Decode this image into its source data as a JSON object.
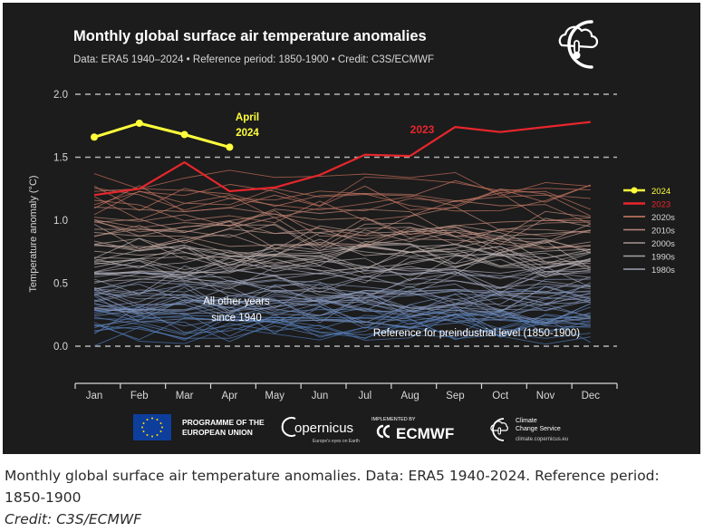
{
  "figure": {
    "title": "Monthly global surface air temperature anomalies",
    "subtitle": "Data: ERA5 1940–2024 • Reference period: 1850-1900 • Credit: C3S/ECMWF"
  },
  "chart_data": {
    "type": "line",
    "ylabel": "Temperature anomaly (°C)",
    "xlabel": "",
    "ylim": [
      0.0,
      2.0
    ],
    "yticks": [
      "0.0",
      "0.5",
      "1.0",
      "1.5",
      "2.0"
    ],
    "grid": "dashed horizontal at 0.0, 1.5, 2.0",
    "categories": [
      "Jan",
      "Feb",
      "Mar",
      "Apr",
      "May",
      "Jun",
      "Jul",
      "Aug",
      "Sep",
      "Oct",
      "Nov",
      "Dec"
    ],
    "series": [
      {
        "name": "2024",
        "color": "#ffff3c",
        "values": [
          1.66,
          1.77,
          1.68,
          1.58,
          null,
          null,
          null,
          null,
          null,
          null,
          null,
          null
        ]
      },
      {
        "name": "2023",
        "color": "#e8262c",
        "values": [
          1.2,
          1.25,
          1.46,
          1.23,
          1.26,
          1.36,
          1.52,
          1.51,
          1.74,
          1.7,
          1.74,
          1.78
        ]
      }
    ],
    "legend": [
      {
        "label": "2024",
        "color": "#ffff3c"
      },
      {
        "label": "2023",
        "color": "#e8262c"
      },
      {
        "label": "2020s",
        "color": "#cf7f67"
      },
      {
        "label": "2010s",
        "color": "#b9877d"
      },
      {
        "label": "2000s",
        "color": "#a89590"
      },
      {
        "label": "1990s",
        "color": "#a3a3a8"
      },
      {
        "label": "1980s",
        "color": "#9ea2b5"
      }
    ],
    "legend_position": "right",
    "annotations": {
      "label_2024_line1": "April",
      "label_2024_line2": "2024",
      "label_2023": "2023",
      "other_years_line1": "All other years",
      "other_years_line2": "since 1940",
      "reference": "Reference for preindustrial level (1850-1900)"
    }
  },
  "logos": {
    "eu_line1": "PROGRAMME OF THE",
    "eu_line2": "EUROPEAN UNION",
    "copernicus": "opernicus",
    "copernicus_tagline": "Europe's eyes on Earth",
    "implemented_by": "IMPLEMENTED BY",
    "ecmwf": "ECMWF",
    "ccs_line1": "Climate",
    "ccs_line2": "Change Service",
    "ccs_url": "climate.copernicus.eu"
  },
  "caption": {
    "text": "Monthly global surface air temperature anomalies. Data: ERA5 1940-2024. Reference period: 1850-1900",
    "credit": "Credit: C3S/ECMWF"
  }
}
